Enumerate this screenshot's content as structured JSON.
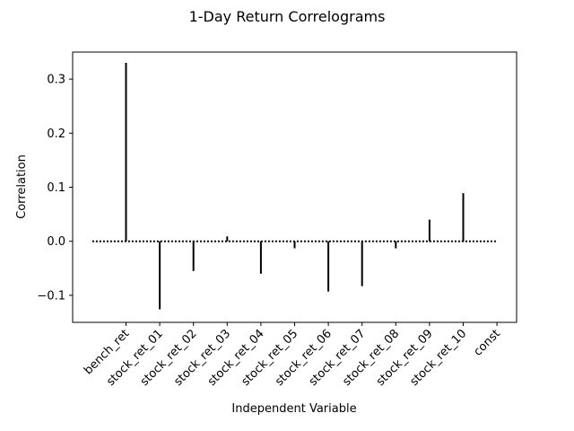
{
  "chart_data": {
    "type": "bar",
    "title": "1-Day Return Correlograms",
    "xlabel": "Independent Variable",
    "ylabel": "Correlation",
    "categories": [
      "bench_ret",
      "stock_ret_01",
      "stock_ret_02",
      "stock_ret_03",
      "stock_ret_04",
      "stock_ret_05",
      "stock_ret_06",
      "stock_ret_07",
      "stock_ret_08",
      "stock_ret_09",
      "stock_ret_10",
      "const"
    ],
    "values": [
      0.33,
      -0.126,
      -0.055,
      0.009,
      -0.06,
      -0.013,
      -0.093,
      -0.083,
      -0.013,
      0.04,
      0.089,
      0.0
    ],
    "ylim": [
      -0.15,
      0.35
    ],
    "yticks": [
      -0.1,
      0.0,
      0.1,
      0.2,
      0.3
    ],
    "ytick_labels": [
      "−0.1",
      "0.0",
      "0.1",
      "0.2",
      "0.3"
    ],
    "baseline": 0.0,
    "baseline_style": "dotted",
    "bar_color": "#000000",
    "grid": false,
    "legend": "none"
  }
}
